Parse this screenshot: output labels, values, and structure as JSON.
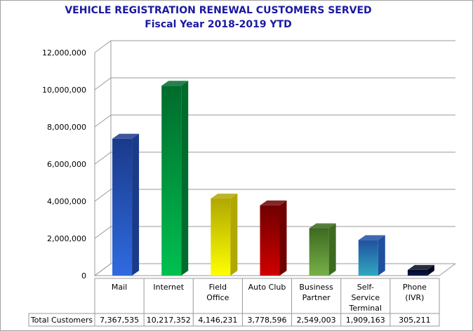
{
  "chart_data": {
    "type": "bar",
    "title": "VEHICLE REGISTRATION RENEWAL CUSTOMERS SERVED",
    "subtitle": "Fiscal Year 2018-2019 YTD",
    "categories": [
      [
        "Mail"
      ],
      [
        "Internet"
      ],
      [
        "Field",
        "Office"
      ],
      [
        "Auto Club"
      ],
      [
        "Business",
        "Partner"
      ],
      [
        "Self-",
        "Service",
        "Terminal"
      ],
      [
        "Phone",
        "(IVR)"
      ]
    ],
    "series": [
      {
        "name": "Total Customers",
        "values": [
          7367535,
          10217352,
          4146231,
          3778596,
          2549003,
          1909163,
          305211
        ]
      }
    ],
    "value_labels": [
      "7,367,535",
      "10,217,352",
      "4,146,231",
      "3,778,596",
      "2,549,003",
      "1,909,163",
      "305,211"
    ],
    "yticks": [
      "0",
      "2,000,000",
      "4,000,000",
      "6,000,000",
      "8,000,000",
      "10,000,000",
      "12,000,000"
    ],
    "ylim": [
      0,
      12000000
    ],
    "grid": true,
    "3d": true,
    "data_table": true,
    "colors": [
      [
        "#2f6be0",
        "#1a3a8a"
      ],
      [
        "#00c050",
        "#006b2c"
      ],
      [
        "#ffff00",
        "#b0a800"
      ],
      [
        "#d00000",
        "#700000"
      ],
      [
        "#78b048",
        "#3d6a20"
      ],
      [
        "#30a8c0",
        "#2050a0"
      ],
      [
        "#0a1a50",
        "#000820"
      ]
    ]
  }
}
